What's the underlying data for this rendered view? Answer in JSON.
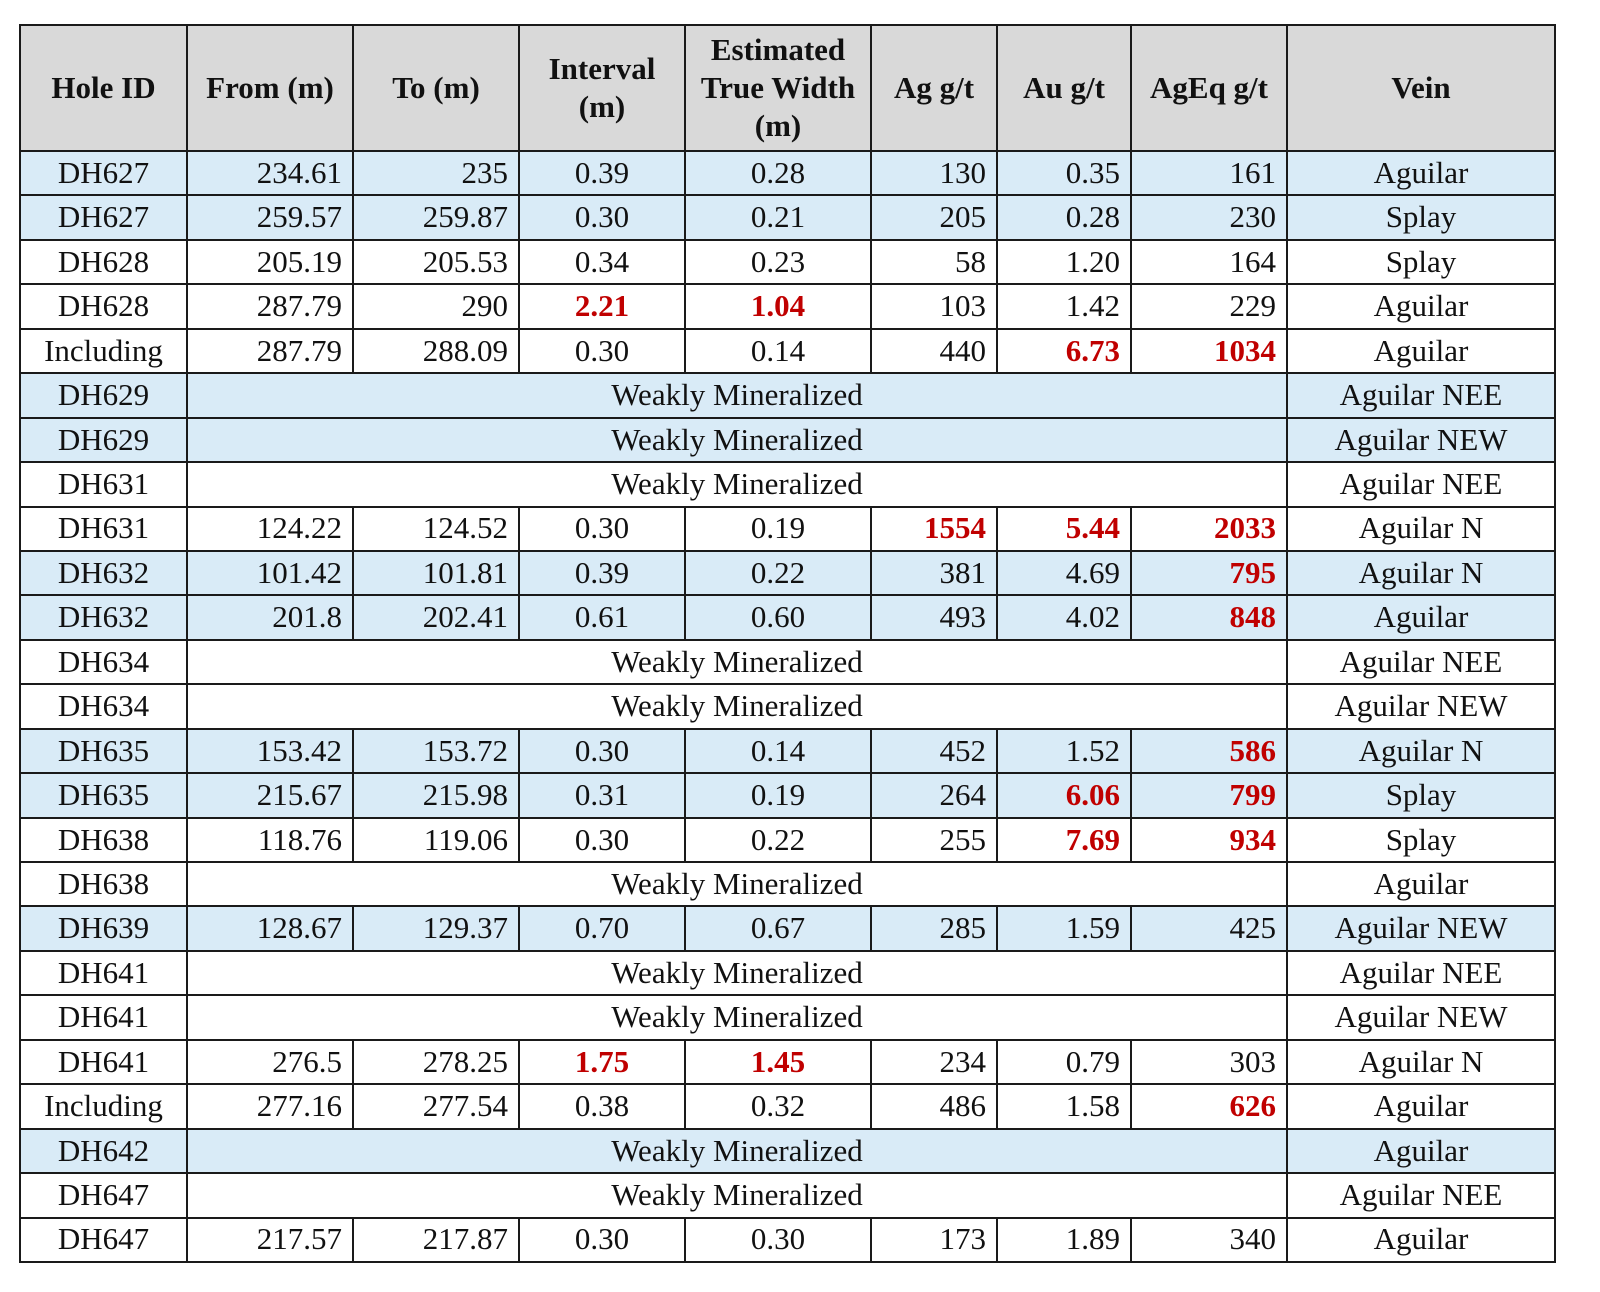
{
  "headers": [
    "Hole ID",
    "From (m)",
    "To (m)",
    "Interval (m)",
    "Estimated True Width (m)",
    "Ag g/t",
    "Au g/t",
    "AgEq g/t",
    "Vein"
  ],
  "highlight_color": "#c00000",
  "row_highlight_color": "#d9ebf7",
  "rows": [
    {
      "hole": "DH627",
      "from": "234.61",
      "to": "235",
      "interval": "0.39",
      "etw": "0.28",
      "ag": "130",
      "au": "0.35",
      "ageq": "161",
      "vein": "Aguilar",
      "shaded": true,
      "hi": []
    },
    {
      "hole": "DH627",
      "from": "259.57",
      "to": "259.87",
      "interval": "0.30",
      "etw": "0.21",
      "ag": "205",
      "au": "0.28",
      "ageq": "230",
      "vein": "Splay",
      "shaded": true,
      "hi": []
    },
    {
      "hole": "DH628",
      "from": "205.19",
      "to": "205.53",
      "interval": "0.34",
      "etw": "0.23",
      "ag": "58",
      "au": "1.20",
      "ageq": "164",
      "vein": "Splay",
      "shaded": false,
      "hi": []
    },
    {
      "hole": "DH628",
      "from": "287.79",
      "to": "290",
      "interval": "2.21",
      "etw": "1.04",
      "ag": "103",
      "au": "1.42",
      "ageq": "229",
      "vein": "Aguilar",
      "shaded": false,
      "hi": [
        "interval",
        "etw"
      ]
    },
    {
      "hole": "Including",
      "from": "287.79",
      "to": "288.09",
      "interval": "0.30",
      "etw": "0.14",
      "ag": "440",
      "au": "6.73",
      "ageq": "1034",
      "vein": "Aguilar",
      "shaded": false,
      "hi": [
        "au",
        "ageq"
      ]
    },
    {
      "hole": "DH629",
      "weak": "Weakly Mineralized",
      "vein": "Aguilar NEE",
      "shaded": true
    },
    {
      "hole": "DH629",
      "weak": "Weakly Mineralized",
      "vein": "Aguilar NEW",
      "shaded": true
    },
    {
      "hole": "DH631",
      "weak": "Weakly Mineralized",
      "vein": "Aguilar NEE",
      "shaded": false
    },
    {
      "hole": "DH631",
      "from": "124.22",
      "to": "124.52",
      "interval": "0.30",
      "etw": "0.19",
      "ag": "1554",
      "au": "5.44",
      "ageq": "2033",
      "vein": "Aguilar N",
      "shaded": false,
      "hi": [
        "ag",
        "au",
        "ageq"
      ]
    },
    {
      "hole": "DH632",
      "from": "101.42",
      "to": "101.81",
      "interval": "0.39",
      "etw": "0.22",
      "ag": "381",
      "au": "4.69",
      "ageq": "795",
      "vein": "Aguilar N",
      "shaded": true,
      "hi": [
        "ageq"
      ]
    },
    {
      "hole": "DH632",
      "from": "201.8",
      "to": "202.41",
      "interval": "0.61",
      "etw": "0.60",
      "ag": "493",
      "au": "4.02",
      "ageq": "848",
      "vein": "Aguilar",
      "shaded": true,
      "hi": [
        "ageq"
      ]
    },
    {
      "hole": "DH634",
      "weak": "Weakly Mineralized",
      "vein": "Aguilar NEE",
      "shaded": false
    },
    {
      "hole": "DH634",
      "weak": "Weakly Mineralized",
      "vein": "Aguilar NEW",
      "shaded": false
    },
    {
      "hole": "DH635",
      "from": "153.42",
      "to": "153.72",
      "interval": "0.30",
      "etw": "0.14",
      "ag": "452",
      "au": "1.52",
      "ageq": "586",
      "vein": "Aguilar N",
      "shaded": true,
      "hi": [
        "ageq"
      ]
    },
    {
      "hole": "DH635",
      "from": "215.67",
      "to": "215.98",
      "interval": "0.31",
      "etw": "0.19",
      "ag": "264",
      "au": "6.06",
      "ageq": "799",
      "vein": "Splay",
      "shaded": true,
      "hi": [
        "au",
        "ageq"
      ]
    },
    {
      "hole": "DH638",
      "from": "118.76",
      "to": "119.06",
      "interval": "0.30",
      "etw": "0.22",
      "ag": "255",
      "au": "7.69",
      "ageq": "934",
      "vein": "Splay",
      "shaded": false,
      "hi": [
        "au",
        "ageq"
      ]
    },
    {
      "hole": "DH638",
      "weak": "Weakly Mineralized",
      "vein": "Aguilar",
      "shaded": false
    },
    {
      "hole": "DH639",
      "from": "128.67",
      "to": "129.37",
      "interval": "0.70",
      "etw": "0.67",
      "ag": "285",
      "au": "1.59",
      "ageq": "425",
      "vein": "Aguilar NEW",
      "shaded": true,
      "hi": []
    },
    {
      "hole": "DH641",
      "weak": "Weakly Mineralized",
      "vein": "Aguilar NEE",
      "shaded": false
    },
    {
      "hole": "DH641",
      "weak": "Weakly Mineralized",
      "vein": "Aguilar NEW",
      "shaded": false
    },
    {
      "hole": "DH641",
      "from": "276.5",
      "to": "278.25",
      "interval": "1.75",
      "etw": "1.45",
      "ag": "234",
      "au": "0.79",
      "ageq": "303",
      "vein": "Aguilar N",
      "shaded": false,
      "hi": [
        "interval",
        "etw"
      ]
    },
    {
      "hole": "Including",
      "from": "277.16",
      "to": "277.54",
      "interval": "0.38",
      "etw": "0.32",
      "ag": "486",
      "au": "1.58",
      "ageq": "626",
      "vein": "Aguilar",
      "shaded": false,
      "hi": [
        "ageq"
      ]
    },
    {
      "hole": "DH642",
      "weak": "Weakly Mineralized",
      "vein": "Aguilar",
      "shaded": true
    },
    {
      "hole": "DH647",
      "weak": "Weakly Mineralized",
      "vein": "Aguilar NEE",
      "shaded": false
    },
    {
      "hole": "DH647",
      "from": "217.57",
      "to": "217.87",
      "interval": "0.30",
      "etw": "0.30",
      "ag": "173",
      "au": "1.89",
      "ageq": "340",
      "vein": "Aguilar",
      "shaded": false,
      "hi": []
    }
  ]
}
